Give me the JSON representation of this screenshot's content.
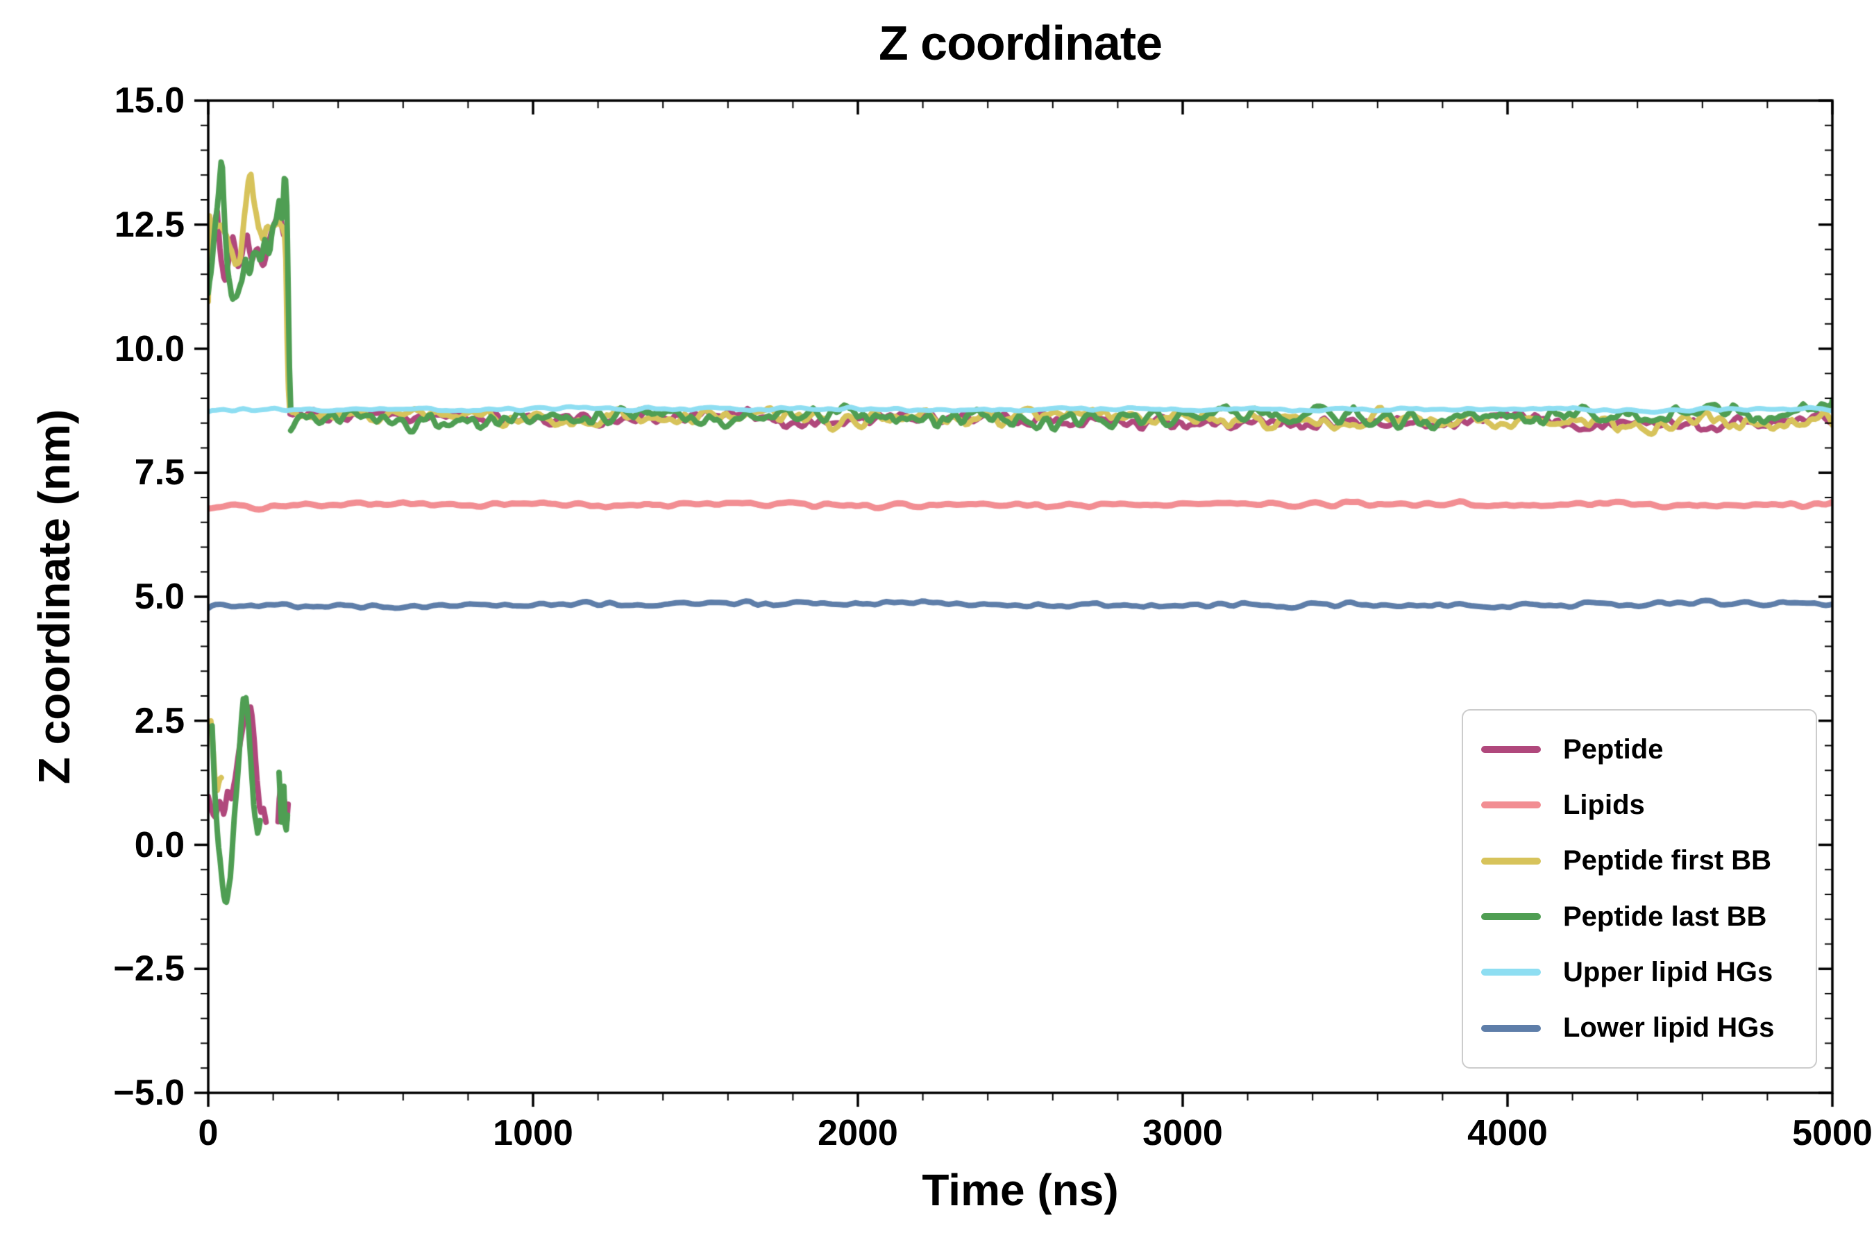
{
  "chart_data": {
    "type": "line",
    "title": "Z coordinate",
    "xlabel": "Time (ns)",
    "ylabel": "Z coordinate (nm)",
    "xlim": [
      0,
      5000
    ],
    "ylim": [
      -5.0,
      15.0
    ],
    "grid": false,
    "frame_color": "#000000",
    "xticks": {
      "major": [
        0,
        1000,
        2000,
        3000,
        4000,
        5000
      ],
      "labels": [
        "0",
        "1000",
        "2000",
        "3000",
        "4000",
        "5000"
      ],
      "minor_step": 200
    },
    "yticks": {
      "major": [
        -5.0,
        -2.5,
        0.0,
        2.5,
        5.0,
        7.5,
        10.0,
        12.5,
        15.0
      ],
      "labels": [
        "−5.0",
        "−2.5",
        "0.0",
        "2.5",
        "5.0",
        "7.5",
        "10.0",
        "12.5",
        "15.0"
      ],
      "minor_step": 0.5
    },
    "legend": {
      "position": "lower right",
      "border_color": "#cccccc",
      "background": "#ffffff"
    },
    "series": [
      {
        "name": "Peptide",
        "color": "#b0487c",
        "linewidth": 8,
        "description": "Peptide COM: fluctuates 11-13 nm (and periodic image 0-3 nm) during 0-250 ns, then binds membrane at ~8.6 nm until 5000 ns",
        "segments": [
          {
            "type": "path",
            "amp": 0.15,
            "x": [
              0,
              8,
              18,
              28,
              38,
              50,
              62,
              75,
              90,
              105,
              120,
              135,
              150,
              165,
              180,
              195,
              208,
              220,
              230,
              240,
              246,
              252
            ],
            "y": [
              11.5,
              12.0,
              12.6,
              12.8,
              11.9,
              11.3,
              11.8,
              12.2,
              11.6,
              11.9,
              12.3,
              11.7,
              12.1,
              11.6,
              12.0,
              12.4,
              12.6,
              12.8,
              12.3,
              12.5,
              9.5,
              8.58
            ]
          },
          {
            "type": "flat",
            "x0": 252,
            "x1": 5000,
            "mean": 8.58,
            "amp": 0.08,
            "amp2": 0.06,
            "step": 8
          },
          {
            "type": "path",
            "amp": 0.15,
            "x": [
              0,
              10,
              22,
              35,
              48,
              60,
              72,
              85,
              98,
              112,
              125,
              132,
              140,
              150,
              160,
              170,
              178
            ],
            "y": [
              1.1,
              0.8,
              0.5,
              1.0,
              0.7,
              1.1,
              0.9,
              1.4,
              2.0,
              2.6,
              2.9,
              2.8,
              2.2,
              1.3,
              0.7,
              0.8,
              0.6
            ]
          },
          {
            "type": "path",
            "amp": 0.12,
            "x": [
              215,
              222,
              228,
              234,
              240,
              246
            ],
            "y": [
              0.6,
              1.2,
              0.5,
              1.0,
              0.4,
              0.8
            ]
          }
        ]
      },
      {
        "name": "Lipids",
        "color": "#f28e93",
        "linewidth": 9,
        "description": "Lipid bilayer COM: flat at ~6.85 nm for entire trajectory",
        "segments": [
          {
            "type": "flat",
            "x0": 0,
            "x1": 5000,
            "mean": 6.85,
            "amp": 0.03,
            "amp2": 0.02,
            "step": 12
          }
        ]
      },
      {
        "name": "Peptide first BB",
        "color": "#d7c35b",
        "linewidth": 8,
        "description": "First backbone bead: ~12.5 nm (and image ~1-2.5 nm) during 0-250 ns, then ~8.56 nm",
        "segments": [
          {
            "type": "path",
            "amp": 0.15,
            "x": [
              0,
              4,
              10,
              18,
              28,
              40,
              55,
              70,
              85,
              100,
              112,
              122,
              132,
              142,
              155,
              170,
              185,
              200,
              215,
              228,
              238,
              245,
              251
            ],
            "y": [
              10.8,
              12.6,
              12.4,
              12.5,
              12.3,
              12.4,
              12.2,
              11.9,
              11.6,
              11.9,
              12.7,
              13.3,
              13.4,
              12.8,
              12.4,
              12.3,
              12.5,
              12.4,
              12.6,
              12.4,
              12.2,
              9.4,
              8.56
            ]
          },
          {
            "type": "flat",
            "x0": 251,
            "x1": 5000,
            "mean": 8.56,
            "amp": 0.09,
            "amp2": 0.07,
            "step": 8
          },
          {
            "type": "path",
            "amp": 0.12,
            "x": [
              8,
              14,
              20,
              27,
              34,
              40
            ],
            "y": [
              2.4,
              2.0,
              1.4,
              1.1,
              1.3,
              1.2
            ]
          }
        ]
      },
      {
        "name": "Peptide last BB",
        "color": "#4f9e53",
        "linewidth": 8,
        "description": "Last backbone bead: spikes to ~13.8 nm (and image -1.2 to 2.9 nm) during 0-250 ns, then ~8.62 nm",
        "segments": [
          {
            "type": "path",
            "amp": 0.18,
            "x": [
              0,
              10,
              20,
              32,
              42,
              50,
              60,
              72,
              85,
              100,
              115,
              130,
              145,
              160,
              175,
              190,
              205,
              218,
              228,
              236,
              243,
              249,
              254
            ],
            "y": [
              11.2,
              11.6,
              12.4,
              13.1,
              13.8,
              12.6,
              11.6,
              11.1,
              10.9,
              11.4,
              11.8,
              11.5,
              12.0,
              11.7,
              12.2,
              12.0,
              12.5,
              13.0,
              12.6,
              13.7,
              12.8,
              9.8,
              8.62
            ]
          },
          {
            "type": "flat",
            "x0": 254,
            "x1": 5000,
            "mean": 8.62,
            "amp": 0.1,
            "amp2": 0.08,
            "step": 8
          },
          {
            "type": "path",
            "amp": 0.15,
            "x": [
              12,
              20,
              30,
              40,
              50,
              58,
              68,
              78,
              88,
              98,
              108,
              116,
              124,
              132,
              142,
              152,
              160
            ],
            "y": [
              2.5,
              1.2,
              0.1,
              -0.5,
              -1.0,
              -1.2,
              -0.6,
              0.3,
              1.2,
              2.1,
              2.8,
              2.9,
              2.4,
              1.6,
              0.6,
              0.2,
              0.3
            ]
          },
          {
            "type": "path",
            "amp": 0.12,
            "x": [
              218,
              226,
              232,
              238,
              244
            ],
            "y": [
              1.3,
              0.3,
              1.4,
              0.2,
              0.7
            ]
          }
        ]
      },
      {
        "name": "Upper lipid HGs",
        "color": "#8edef2",
        "linewidth": 7,
        "description": "Upper leaflet headgroups: flat at ~8.78 nm for entire trajectory",
        "segments": [
          {
            "type": "flat",
            "x0": 0,
            "x1": 5000,
            "mean": 8.78,
            "amp": 0.022,
            "amp2": 0.015,
            "step": 12
          }
        ]
      },
      {
        "name": "Lower lipid HGs",
        "color": "#5e7ea9",
        "linewidth": 8,
        "description": "Lower leaflet headgroups: flat at ~4.85 nm for entire trajectory",
        "segments": [
          {
            "type": "flat",
            "x0": 0,
            "x1": 5000,
            "mean": 4.85,
            "amp": 0.03,
            "amp2": 0.02,
            "step": 12
          }
        ]
      }
    ]
  }
}
